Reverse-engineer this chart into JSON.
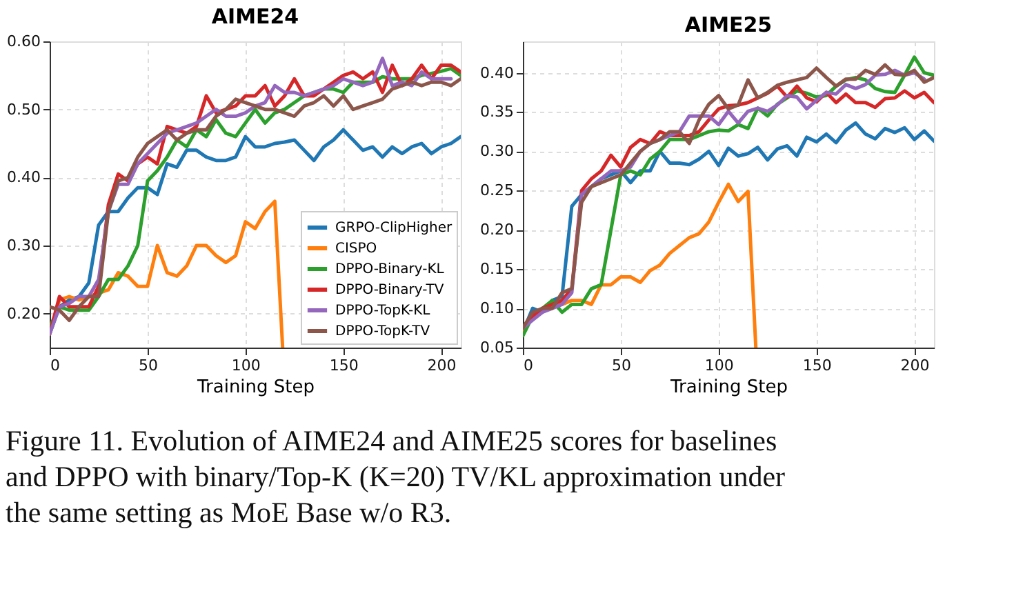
{
  "chart_data": [
    {
      "type": "line",
      "title": "AIME24",
      "xlabel": "Training Step",
      "xlim": [
        0,
        210
      ],
      "xticks": [
        0,
        50,
        100,
        150,
        200
      ],
      "ylim": [
        0.15,
        0.6
      ],
      "yticks": [
        {
          "value": 0.2,
          "label": "0.20"
        },
        {
          "value": 0.3,
          "label": "0.30"
        },
        {
          "value": 0.4,
          "label": "0.40"
        },
        {
          "value": 0.5,
          "label": "0.50"
        },
        {
          "value": 0.6,
          "label": "0.60"
        }
      ],
      "grid": true,
      "legend": "bottom right",
      "line_style": "solid",
      "marker": "none",
      "x": [
        0,
        5,
        10,
        15,
        20,
        25,
        30,
        35,
        40,
        45,
        50,
        55,
        60,
        65,
        70,
        75,
        80,
        85,
        90,
        95,
        100,
        105,
        110,
        115,
        120,
        125,
        130,
        135,
        140,
        145,
        150,
        155,
        160,
        165,
        170,
        175,
        180,
        185,
        190,
        195,
        200,
        205,
        210
      ],
      "series": [
        {
          "name": "GRPO-ClipHigher",
          "color": "#1f77b4",
          "values": [
            0.17,
            0.21,
            0.22,
            0.225,
            0.245,
            0.33,
            0.35,
            0.35,
            0.37,
            0.385,
            0.385,
            0.375,
            0.42,
            0.415,
            0.44,
            0.44,
            0.43,
            0.425,
            0.425,
            0.43,
            0.46,
            0.445,
            0.445,
            0.45,
            0.452,
            0.455,
            0.44,
            0.425,
            0.445,
            0.455,
            0.47,
            0.455,
            0.44,
            0.445,
            0.43,
            0.445,
            0.435,
            0.445,
            0.45,
            0.435,
            0.445,
            0.45,
            0.46
          ]
        },
        {
          "name": "CISPO",
          "color": "#ff7f0e",
          "x": [
            0,
            5,
            10,
            15,
            20,
            25,
            30,
            35,
            40,
            45,
            50,
            55,
            60,
            65,
            70,
            75,
            80,
            85,
            90,
            95,
            100,
            105,
            110,
            115,
            119
          ],
          "values": [
            0.17,
            0.22,
            0.225,
            0.22,
            0.225,
            0.23,
            0.235,
            0.26,
            0.255,
            0.24,
            0.24,
            0.3,
            0.26,
            0.255,
            0.27,
            0.3,
            0.3,
            0.285,
            0.275,
            0.285,
            0.335,
            0.325,
            0.35,
            0.365,
            0.15
          ]
        },
        {
          "name": "DPPO-Binary-KL",
          "color": "#2ca02c",
          "values": [
            0.18,
            0.21,
            0.205,
            0.205,
            0.205,
            0.225,
            0.25,
            0.25,
            0.27,
            0.3,
            0.395,
            0.41,
            0.43,
            0.455,
            0.445,
            0.47,
            0.46,
            0.485,
            0.465,
            0.46,
            0.48,
            0.5,
            0.48,
            0.495,
            0.5,
            0.51,
            0.52,
            0.525,
            0.53,
            0.53,
            0.525,
            0.54,
            0.54,
            0.54,
            0.548,
            0.545,
            0.545,
            0.545,
            0.55,
            0.553,
            0.556,
            0.56,
            0.55
          ]
        },
        {
          "name": "DPPO-Binary-TV",
          "color": "#d62728",
          "values": [
            0.17,
            0.225,
            0.21,
            0.21,
            0.21,
            0.24,
            0.36,
            0.405,
            0.395,
            0.42,
            0.43,
            0.42,
            0.475,
            0.47,
            0.465,
            0.475,
            0.52,
            0.495,
            0.5,
            0.505,
            0.52,
            0.52,
            0.535,
            0.505,
            0.52,
            0.545,
            0.52,
            0.52,
            0.53,
            0.54,
            0.55,
            0.555,
            0.545,
            0.555,
            0.525,
            0.565,
            0.535,
            0.545,
            0.565,
            0.545,
            0.565,
            0.565,
            0.555
          ]
        },
        {
          "name": "DPPO-TopK-KL",
          "color": "#9467bd",
          "values": [
            0.17,
            0.21,
            0.215,
            0.225,
            0.225,
            0.25,
            0.35,
            0.39,
            0.39,
            0.42,
            0.435,
            0.45,
            0.465,
            0.47,
            0.475,
            0.48,
            0.49,
            0.5,
            0.49,
            0.49,
            0.495,
            0.505,
            0.51,
            0.535,
            0.525,
            0.525,
            0.52,
            0.525,
            0.53,
            0.535,
            0.545,
            0.54,
            0.535,
            0.54,
            0.575,
            0.535,
            0.54,
            0.535,
            0.555,
            0.545,
            0.545,
            0.545,
            null
          ]
        },
        {
          "name": "DPPO-TopK-TV",
          "color": "#8c564b",
          "values": [
            0.21,
            0.205,
            0.19,
            0.21,
            0.225,
            0.225,
            0.35,
            0.395,
            0.4,
            0.43,
            0.45,
            0.46,
            0.47,
            0.455,
            0.465,
            0.47,
            0.47,
            0.49,
            0.5,
            0.515,
            0.51,
            0.505,
            0.5,
            0.5,
            0.495,
            0.49,
            0.505,
            0.51,
            0.52,
            0.505,
            0.52,
            0.5,
            0.505,
            0.51,
            0.515,
            0.53,
            0.535,
            0.54,
            0.535,
            0.54,
            0.54,
            0.535,
            0.545
          ]
        }
      ],
      "annotations": [
        "Figure 11. Evolution of AIME24 and AIME25 scores for baselines and DPPO with binary/Top-K (K=20) TV/KL approximation under the same setting as MoE Base w/o R3."
      ]
    },
    {
      "type": "line",
      "title": "AIME25",
      "xlabel": "Training Step",
      "xlim": [
        0,
        210
      ],
      "xticks": [
        0,
        50,
        100,
        150,
        200
      ],
      "ylim": [
        0.05,
        0.44
      ],
      "yticks": [
        {
          "value": 0.05,
          "label": "0.05"
        },
        {
          "value": 0.1,
          "label": "0.10"
        },
        {
          "value": 0.15,
          "label": "0.15"
        },
        {
          "value": 0.2,
          "label": "0.20"
        },
        {
          "value": 0.25,
          "label": "0.25"
        },
        {
          "value": 0.3,
          "label": "0.30"
        },
        {
          "value": 0.35,
          "label": "0.35"
        },
        {
          "value": 0.4,
          "label": "0.40"
        }
      ],
      "grid": true,
      "line_style": "solid",
      "marker": "none",
      "x": [
        0,
        5,
        10,
        15,
        20,
        25,
        30,
        35,
        40,
        45,
        50,
        55,
        60,
        65,
        70,
        75,
        80,
        85,
        90,
        95,
        100,
        105,
        110,
        115,
        120,
        125,
        130,
        135,
        140,
        145,
        150,
        155,
        160,
        165,
        170,
        175,
        180,
        185,
        190,
        195,
        200,
        205,
        210
      ],
      "series": [
        {
          "color": "#1f77b4",
          "values": [
            0.07,
            0.1,
            0.095,
            0.11,
            0.115,
            0.23,
            0.245,
            0.255,
            0.265,
            0.27,
            0.275,
            0.26,
            0.275,
            0.275,
            0.3,
            0.285,
            0.285,
            0.283,
            0.29,
            0.3,
            0.282,
            0.304,
            0.294,
            0.297,
            0.305,
            0.289,
            0.303,
            0.307,
            0.294,
            0.318,
            0.312,
            0.322,
            0.311,
            0.327,
            0.336,
            0.322,
            0.316,
            0.329,
            0.324,
            0.33,
            0.315,
            0.326,
            0.313
          ]
        },
        {
          "color": "#ff7f0e",
          "x": [
            0,
            5,
            10,
            15,
            20,
            25,
            30,
            35,
            40,
            45,
            50,
            55,
            60,
            65,
            70,
            75,
            80,
            85,
            90,
            95,
            100,
            105,
            110,
            115,
            119
          ],
          "values": [
            0.07,
            0.09,
            0.1,
            0.105,
            0.105,
            0.11,
            0.11,
            0.105,
            0.13,
            0.13,
            0.14,
            0.14,
            0.133,
            0.148,
            0.155,
            0.17,
            0.18,
            0.19,
            0.195,
            0.21,
            0.235,
            0.258,
            0.236,
            0.249,
            0.05
          ]
        },
        {
          "color": "#2ca02c",
          "values": [
            0.065,
            0.09,
            0.1,
            0.11,
            0.095,
            0.105,
            0.105,
            0.125,
            0.13,
            0.2,
            0.27,
            0.275,
            0.27,
            0.29,
            0.3,
            0.315,
            0.315,
            0.315,
            0.32,
            0.325,
            0.327,
            0.326,
            0.334,
            0.329,
            0.355,
            0.345,
            0.36,
            0.368,
            0.377,
            0.374,
            0.369,
            0.371,
            0.383,
            0.391,
            0.394,
            0.391,
            0.38,
            0.376,
            0.375,
            0.397,
            0.42,
            0.4,
            0.397
          ]
        },
        {
          "color": "#d62728",
          "values": [
            0.075,
            0.09,
            0.1,
            0.105,
            0.11,
            0.125,
            0.25,
            0.265,
            0.275,
            0.295,
            0.28,
            0.305,
            0.315,
            0.31,
            0.325,
            0.32,
            0.32,
            0.32,
            0.325,
            0.34,
            0.354,
            0.358,
            0.359,
            0.362,
            0.368,
            0.374,
            0.383,
            0.369,
            0.383,
            0.368,
            0.363,
            0.375,
            0.362,
            0.373,
            0.362,
            0.362,
            0.356,
            0.367,
            0.368,
            0.377,
            0.368,
            0.375,
            0.362
          ]
        },
        {
          "color": "#9467bd",
          "values": [
            0.075,
            0.085,
            0.095,
            0.1,
            0.105,
            0.12,
            0.245,
            0.255,
            0.265,
            0.275,
            0.275,
            0.28,
            0.3,
            0.31,
            0.315,
            0.32,
            0.325,
            0.345,
            0.345,
            0.345,
            0.334,
            0.351,
            0.336,
            0.351,
            0.355,
            0.351,
            0.359,
            0.371,
            0.369,
            0.354,
            0.365,
            0.375,
            0.373,
            0.385,
            0.38,
            0.385,
            0.397,
            0.398,
            0.403,
            0.397,
            0.4,
            0.392,
            null
          ]
        },
        {
          "color": "#8c564b",
          "values": [
            0.075,
            0.095,
            0.1,
            0.1,
            0.12,
            0.125,
            0.235,
            0.255,
            0.26,
            0.265,
            0.27,
            0.285,
            0.3,
            0.31,
            0.315,
            0.325,
            0.325,
            0.31,
            0.34,
            0.36,
            0.371,
            0.354,
            0.359,
            0.391,
            0.368,
            0.375,
            0.384,
            0.388,
            0.391,
            0.394,
            0.406,
            0.394,
            0.383,
            0.392,
            0.392,
            0.403,
            0.398,
            0.41,
            0.398,
            0.397,
            0.403,
            0.388,
            0.394
          ]
        }
      ]
    }
  ]
}
